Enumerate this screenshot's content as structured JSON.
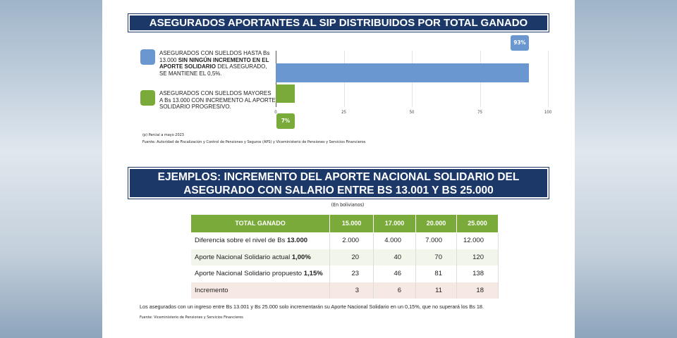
{
  "chart_data": {
    "type": "bar",
    "orientation": "horizontal",
    "title": "ASEGURADOS APORTANTES AL SIP DISTRIBUIDOS POR TOTAL GANADO",
    "categories": [
      {
        "text": "ASEGURADOS CON SUELDOS HASTA Bs 13.000 ",
        "bold": "SIN NINGÚN INCREMENTO EN EL APORTE SOLIDARIO",
        "after": " DEL ASEGURADO, SE MANTIENE EL 0,5%."
      },
      {
        "text": "ASEGURADOS CON SUELDOS MAYORES A Bs 13.000 CON INCREMENTO AL APORTE SOLIDARIO PROGRESIVO.",
        "bold": "",
        "after": ""
      }
    ],
    "values": [
      93,
      7
    ],
    "data_labels": [
      "93%",
      "7%"
    ],
    "colors": [
      "#6a97cf",
      "#7aab3a"
    ],
    "xlim": [
      0,
      100
    ],
    "ticks": [
      "0",
      "25",
      "50",
      "75",
      "100"
    ],
    "grid": true
  },
  "notes": {
    "partial": "(p) Parcial a mayo 2023",
    "source1": "Fuente: Autoridad de Fiscalización y Control de Pensiones y Seguros (APS) y Viceministerio de Pensiones y Servicios Financieros"
  },
  "section2": {
    "title_line1": "EJEMPLOS: INCREMENTO DEL APORTE NACIONAL SOLIDARIO DEL",
    "title_line2": "ASEGURADO CON SALARIO ENTRE BS 13.001 Y BS 25.000",
    "unit": "(En bolivianos)",
    "table": {
      "headers": [
        "TOTAL GANADO",
        "15.000",
        "17.000",
        "20.000",
        "25.000"
      ],
      "rows": [
        {
          "label": "Diferencia sobre el nivel de Bs ",
          "bold": "13.000",
          "cells": [
            "2.000",
            "4.000",
            "7.000",
            "12.000"
          ]
        },
        {
          "label": "Aporte Nacional Solidario actual ",
          "bold": "1,00%",
          "cells": [
            "20",
            "40",
            "70",
            "120"
          ]
        },
        {
          "label": "Aporte Nacional Solidario propuesto ",
          "bold": "1,15%",
          "cells": [
            "23",
            "46",
            "81",
            "138"
          ]
        },
        {
          "label": "Incremento",
          "bold": "",
          "cells": [
            "3",
            "6",
            "11",
            "18"
          ]
        }
      ]
    },
    "footnote": "Los asegurados con un ingreso entre Bs 13.001 y Bs 25.000 solo incrementarán su Aporte Nacional Solidario en un 0,15%, que no superará los Bs 18.",
    "source": "Fuente: Viceministerio de Pensiones y Servicios Financieros"
  }
}
